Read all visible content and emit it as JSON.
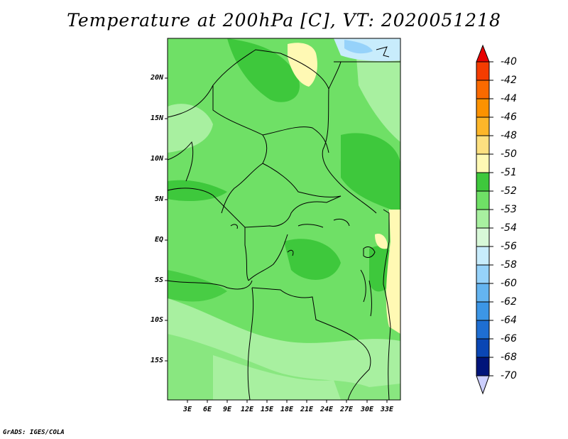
{
  "title": "Temperature at 200hPa [C], VT: 2020051218",
  "credit": "GrADS: IGES/COLA",
  "axes": {
    "lat_labels": [
      "20N",
      "15N",
      "10N",
      "5N",
      "EQ",
      "5S",
      "10S",
      "15S"
    ],
    "lon_labels": [
      "3E",
      "6E",
      "9E",
      "12E",
      "15E",
      "18E",
      "21E",
      "24E",
      "27E",
      "30E",
      "33E"
    ]
  },
  "colorbar": {
    "levels": [
      "-40",
      "-42",
      "-44",
      "-46",
      "-48",
      "-50",
      "-51",
      "-52",
      "-53",
      "-54",
      "-56",
      "-58",
      "-60",
      "-62",
      "-64",
      "-66",
      "-68",
      "-70"
    ],
    "colors": [
      "#e80000",
      "#f43c00",
      "#fa6a00",
      "#fc9200",
      "#fdb62a",
      "#fde080",
      "#fff9b4",
      "#3ec83c",
      "#6fe066",
      "#a8f0a0",
      "#d8f8d8",
      "#c8ecfc",
      "#96d2fa",
      "#64b4f0",
      "#3c96e6",
      "#1e6ed2",
      "#0a46b4",
      "#00147a",
      "#cccfff"
    ]
  },
  "colors": {
    "land_main": "#6fe066",
    "land_warm": "#3ec83c",
    "land_cool": "#a8f0a0",
    "land_coolest": "#d8f8d8",
    "yellow": "#fff9b4",
    "blue_light": "#c8ecfc",
    "blue_mid": "#96d2fa"
  }
}
